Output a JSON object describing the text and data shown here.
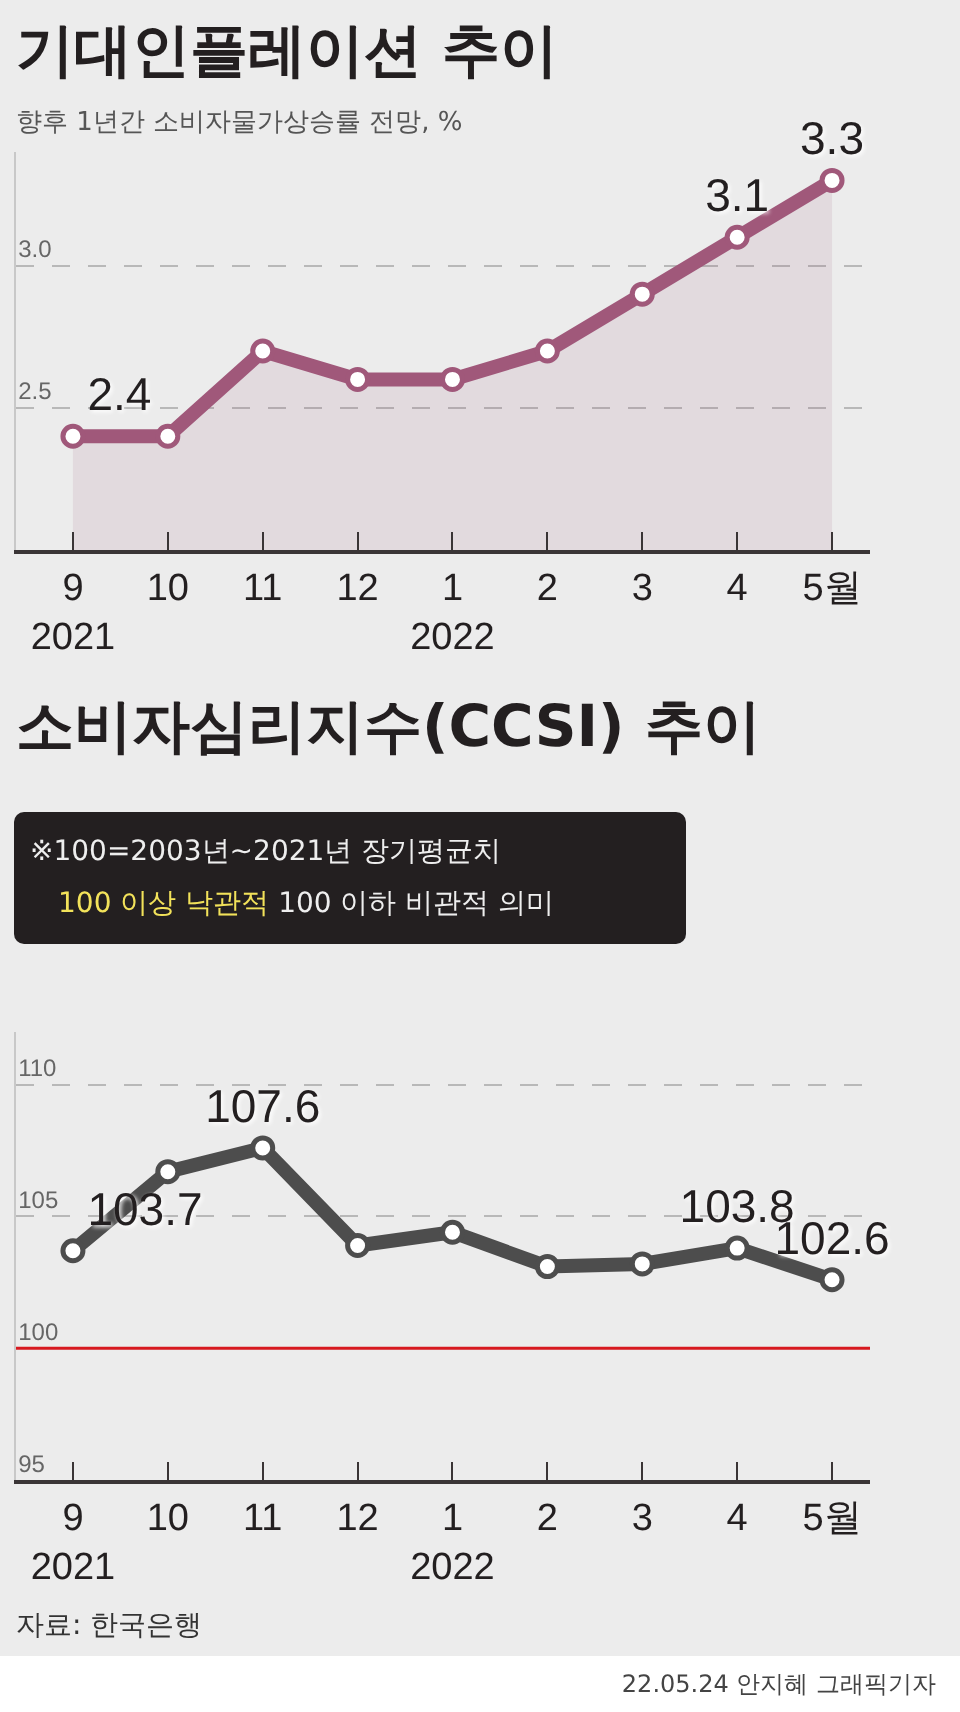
{
  "chart_data": [
    {
      "type": "area",
      "title": "기대인플레이션 추이",
      "subtitle": "향후 1년간 소비자물가상승률 전망, %",
      "categories": [
        "9\n2021",
        "10",
        "11",
        "12",
        "1\n2022",
        "2",
        "3",
        "4",
        "5월"
      ],
      "series": [
        {
          "color": "#a0587a",
          "values": [
            2.4,
            2.4,
            2.7,
            2.6,
            2.6,
            2.7,
            2.9,
            3.1,
            3.3
          ],
          "value_labels": [
            "2.4",
            null,
            null,
            null,
            null,
            null,
            null,
            "3.1",
            "3.3"
          ]
        }
      ],
      "ylim": [
        2.0,
        3.4
      ],
      "yticks": [
        2.5,
        {
          "value": 3.0,
          "label": "3.0"
        }
      ],
      "grid": "y",
      "marker": "circle"
    },
    {
      "type": "line",
      "title": "소비자심리지수(CCSI) 추이",
      "annotations": [
        "※100=2003년~2021년 장기평균치",
        "100 이상 낙관적",
        "100 이하 비관적 의미",
        "자료: 한국은행",
        "22.05.24 안지혜 그래픽기자"
      ],
      "categories": [
        "9\n2021",
        "10",
        "11",
        "12",
        "1\n2022",
        "2",
        "3",
        "4",
        "5월"
      ],
      "series": [
        {
          "color": "#4d4d4d",
          "values": [
            103.7,
            106.7,
            107.6,
            103.9,
            104.4,
            103.1,
            103.2,
            103.8,
            102.6
          ],
          "value_labels": [
            "103.7",
            null,
            "107.6",
            null,
            null,
            null,
            null,
            "103.8",
            "102.6"
          ]
        }
      ],
      "ylim": [
        95,
        112
      ],
      "yticks": [
        95,
        100,
        105,
        110
      ],
      "grid": "y",
      "marker": "circle",
      "ref_lines": [
        {
          "axis": "y",
          "value": 100,
          "color": "#d7191f"
        }
      ]
    }
  ]
}
